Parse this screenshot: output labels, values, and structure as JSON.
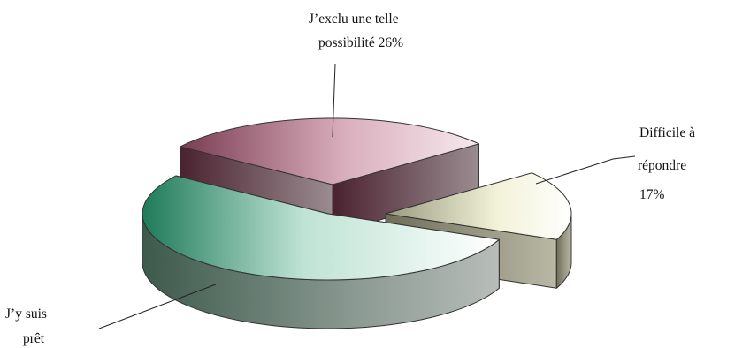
{
  "chart_data": {
    "type": "pie",
    "style": "3d-exploded",
    "slices": [
      {
        "label_lines": [
          "J’exclu      une       telle",
          "possibilité 26%"
        ],
        "label": "J’exclu une telle possibilité 26%",
        "value": 26,
        "color_top": "#e9c9d4",
        "color_dark": "#7a3c52"
      },
      {
        "label_lines": [
          "Difficile          à",
          "répondre",
          "17%"
        ],
        "label": "Difficile à répondre 17%",
        "value": 17,
        "color_top": "#fbfbe6",
        "color_dark": "#8a8a6e"
      },
      {
        "label_lines": [
          "J’y     suis",
          "prêt"
        ],
        "label": "J’y suis prêt",
        "value": 57,
        "color_top": "#d8efe6",
        "color_dark": "#2f8a66"
      }
    ],
    "legend": "none"
  }
}
